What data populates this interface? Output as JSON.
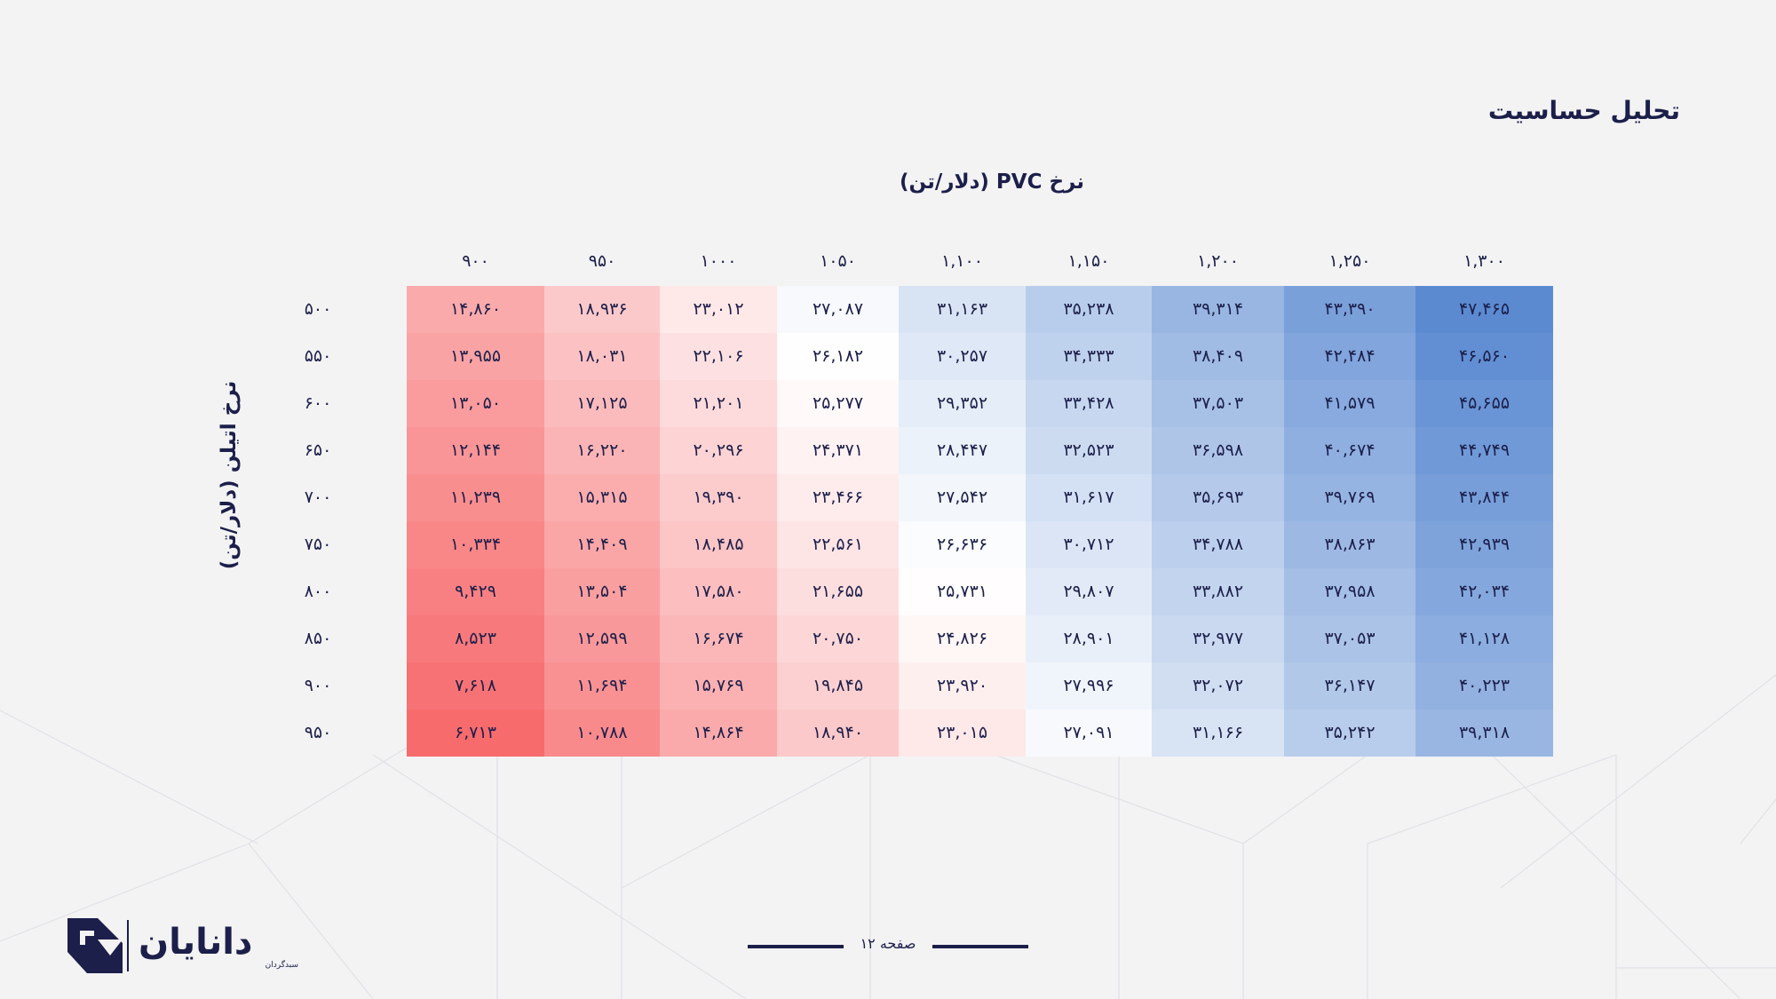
{
  "title": "تحلیل حساسیت",
  "table": {
    "column_axis_title": "نرخ PVC (دلار/تن)",
    "row_axis_title": "نرخ اتیلن (دلار/تن)",
    "columns": [
      "۹۰۰",
      "۹۵۰",
      "۱۰۰۰",
      "۱۰۵۰",
      "۱,۱۰۰",
      "۱,۱۵۰",
      "۱,۲۰۰",
      "۱,۲۵۰",
      "۱,۳۰۰"
    ],
    "rows": [
      {
        "label": "۵۰۰",
        "cells": [
          "۱۴,۸۶۰",
          "۱۸,۹۳۶",
          "۲۳,۰۱۲",
          "۲۷,۰۸۷",
          "۳۱,۱۶۳",
          "۳۵,۲۳۸",
          "۳۹,۳۱۴",
          "۴۳,۳۹۰",
          "۴۷,۴۶۵"
        ]
      },
      {
        "label": "۵۵۰",
        "cells": [
          "۱۳,۹۵۵",
          "۱۸,۰۳۱",
          "۲۲,۱۰۶",
          "۲۶,۱۸۲",
          "۳۰,۲۵۷",
          "۳۴,۳۳۳",
          "۳۸,۴۰۹",
          "۴۲,۴۸۴",
          "۴۶,۵۶۰"
        ]
      },
      {
        "label": "۶۰۰",
        "cells": [
          "۱۳,۰۵۰",
          "۱۷,۱۲۵",
          "۲۱,۲۰۱",
          "۲۵,۲۷۷",
          "۲۹,۳۵۲",
          "۳۳,۴۲۸",
          "۳۷,۵۰۳",
          "۴۱,۵۷۹",
          "۴۵,۶۵۵"
        ]
      },
      {
        "label": "۶۵۰",
        "cells": [
          "۱۲,۱۴۴",
          "۱۶,۲۲۰",
          "۲۰,۲۹۶",
          "۲۴,۳۷۱",
          "۲۸,۴۴۷",
          "۳۲,۵۲۳",
          "۳۶,۵۹۸",
          "۴۰,۶۷۴",
          "۴۴,۷۴۹"
        ]
      },
      {
        "label": "۷۰۰",
        "cells": [
          "۱۱,۲۳۹",
          "۱۵,۳۱۵",
          "۱۹,۳۹۰",
          "۲۳,۴۶۶",
          "۲۷,۵۴۲",
          "۳۱,۶۱۷",
          "۳۵,۶۹۳",
          "۳۹,۷۶۹",
          "۴۳,۸۴۴"
        ]
      },
      {
        "label": "۷۵۰",
        "cells": [
          "۱۰,۳۳۴",
          "۱۴,۴۰۹",
          "۱۸,۴۸۵",
          "۲۲,۵۶۱",
          "۲۶,۶۳۶",
          "۳۰,۷۱۲",
          "۳۴,۷۸۸",
          "۳۸,۸۶۳",
          "۴۲,۹۳۹"
        ]
      },
      {
        "label": "۸۰۰",
        "cells": [
          "۹,۴۲۹",
          "۱۳,۵۰۴",
          "۱۷,۵۸۰",
          "۲۱,۶۵۵",
          "۲۵,۷۳۱",
          "۲۹,۸۰۷",
          "۳۳,۸۸۲",
          "۳۷,۹۵۸",
          "۴۲,۰۳۴"
        ]
      },
      {
        "label": "۸۵۰",
        "cells": [
          "۸,۵۲۳",
          "۱۲,۵۹۹",
          "۱۶,۶۷۴",
          "۲۰,۷۵۰",
          "۲۴,۸۲۶",
          "۲۸,۹۰۱",
          "۳۲,۹۷۷",
          "۳۷,۰۵۳",
          "۴۱,۱۲۸"
        ]
      },
      {
        "label": "۹۰۰",
        "cells": [
          "۷,۶۱۸",
          "۱۱,۶۹۴",
          "۱۵,۷۶۹",
          "۱۹,۸۴۵",
          "۲۳,۹۲۰",
          "۲۷,۹۹۶",
          "۳۲,۰۷۲",
          "۳۶,۱۴۷",
          "۴۰,۲۲۳"
        ]
      },
      {
        "label": "۹۵۰",
        "cells": [
          "۶,۷۱۳",
          "۱۰,۷۸۸",
          "۱۴,۸۶۴",
          "۱۸,۹۴۰",
          "۲۳,۰۱۵",
          "۲۷,۰۹۱",
          "۳۱,۱۶۶",
          "۳۵,۲۴۲",
          "۳۹,۳۱۸"
        ]
      }
    ],
    "colors": {
      "low": "#f76b6d",
      "mid": "#ffffff",
      "high": "#5b8ad1",
      "text": "#1c1f4a"
    }
  },
  "brand": {
    "name": "دانایان",
    "subtitle": "سبدگردان",
    "logo_icon": "danayan-logo-icon",
    "color": "#1c1f4a"
  },
  "footer": {
    "page_label": "صفحه ۱۲"
  }
}
